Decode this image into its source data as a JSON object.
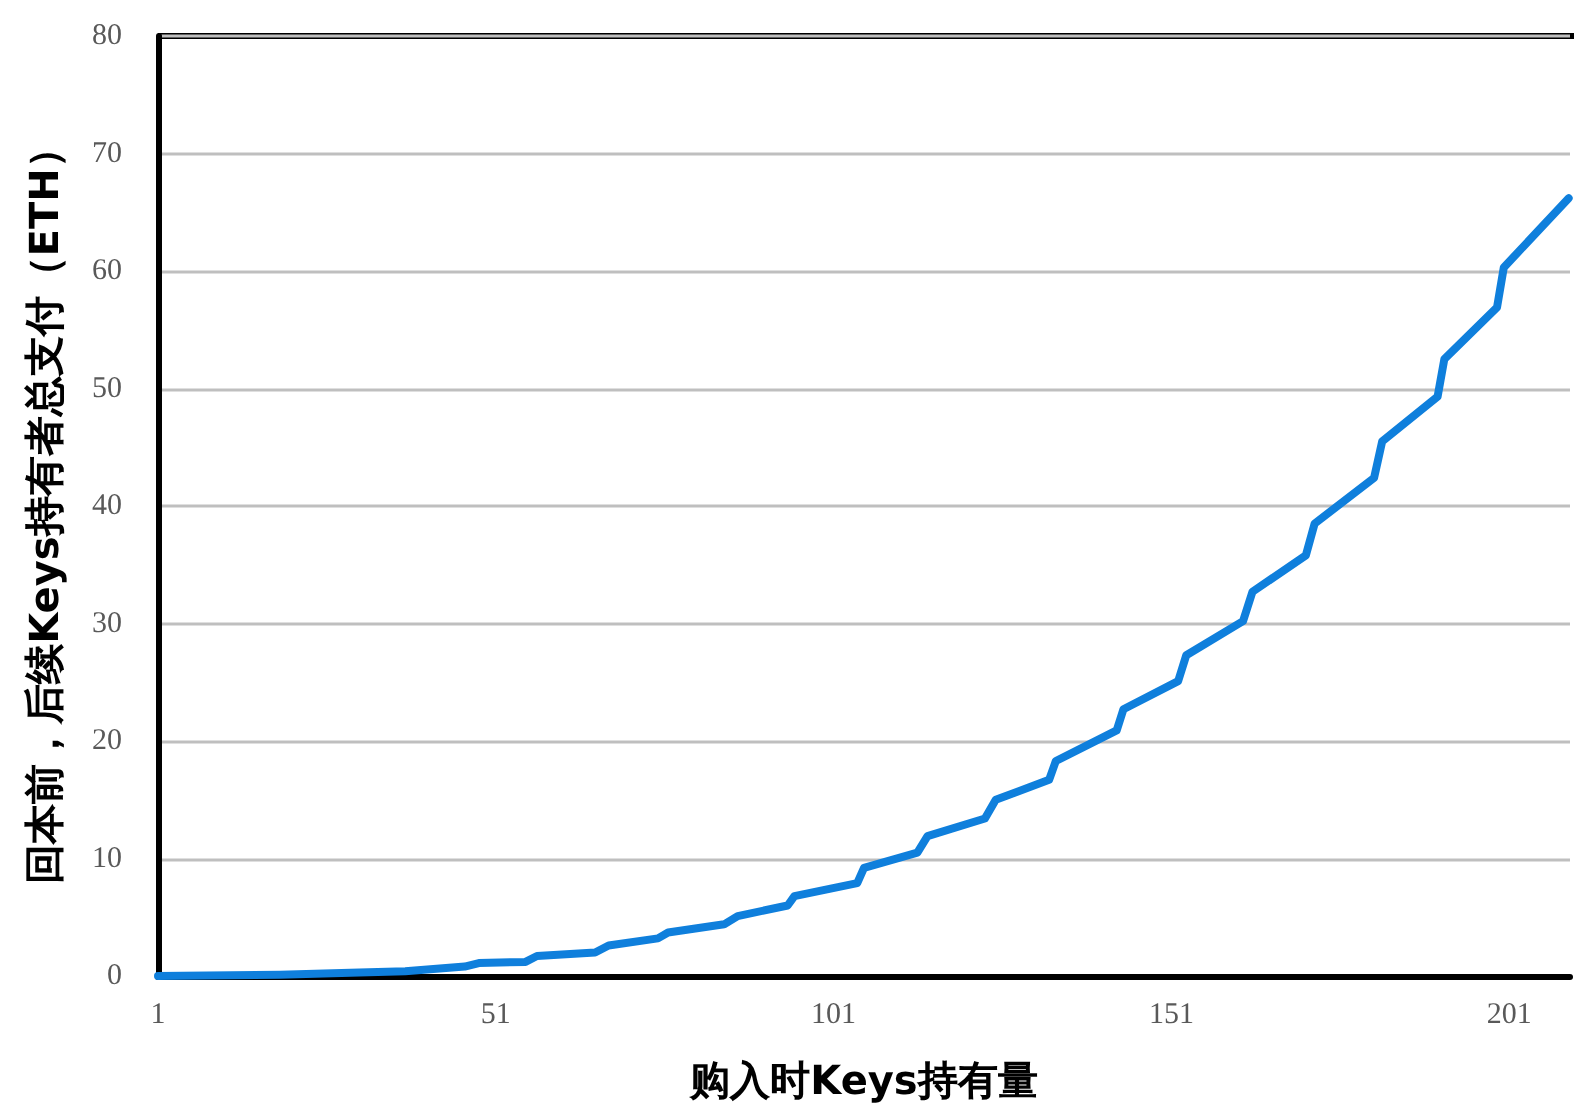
{
  "chart_data": {
    "type": "line",
    "xlabel": "购入时Keys持有量",
    "ylabel": "回本前，后续Keys持有者总支付（ETH）",
    "x": [
      1,
      19,
      30.8,
      37.6,
      46.4,
      48.5,
      55.4,
      57.1,
      65.7,
      67.7,
      75,
      76.5,
      84.8,
      86.8,
      94.2,
      95.2,
      104.5,
      105.5,
      113.4,
      114.9,
      123.4,
      125,
      132.9,
      133.9,
      142.9,
      143.9,
      152,
      153.2,
      161.6,
      163,
      170.9,
      172.2,
      181,
      182.2,
      190.4,
      191.4,
      199.2,
      200.2,
      209.8
    ],
    "series": [
      {
        "color": "#0f7fdc",
        "values": [
          0,
          0.1,
          0.3,
          0.4,
          0.8,
          1.1,
          1.2,
          1.7,
          2.0,
          2.6,
          3.2,
          3.7,
          4.4,
          5.1,
          6.0,
          6.8,
          7.9,
          9.2,
          10.5,
          11.9,
          13.4,
          15.0,
          16.7,
          18.3,
          20.9,
          22.7,
          25.1,
          27.3,
          30.2,
          32.7,
          35.8,
          38.5,
          42.4,
          45.5,
          49.3,
          52.5,
          56.9,
          60.3,
          66.2
        ]
      }
    ],
    "xlim": [
      1,
      210
    ],
    "xticks": [
      1,
      51,
      101,
      151,
      201
    ],
    "ylim": [
      0,
      80
    ],
    "yticks": [
      0,
      10,
      20,
      30,
      40,
      50,
      60,
      70,
      80
    ],
    "grid": "y",
    "marker": "none",
    "line_style": "solid"
  }
}
